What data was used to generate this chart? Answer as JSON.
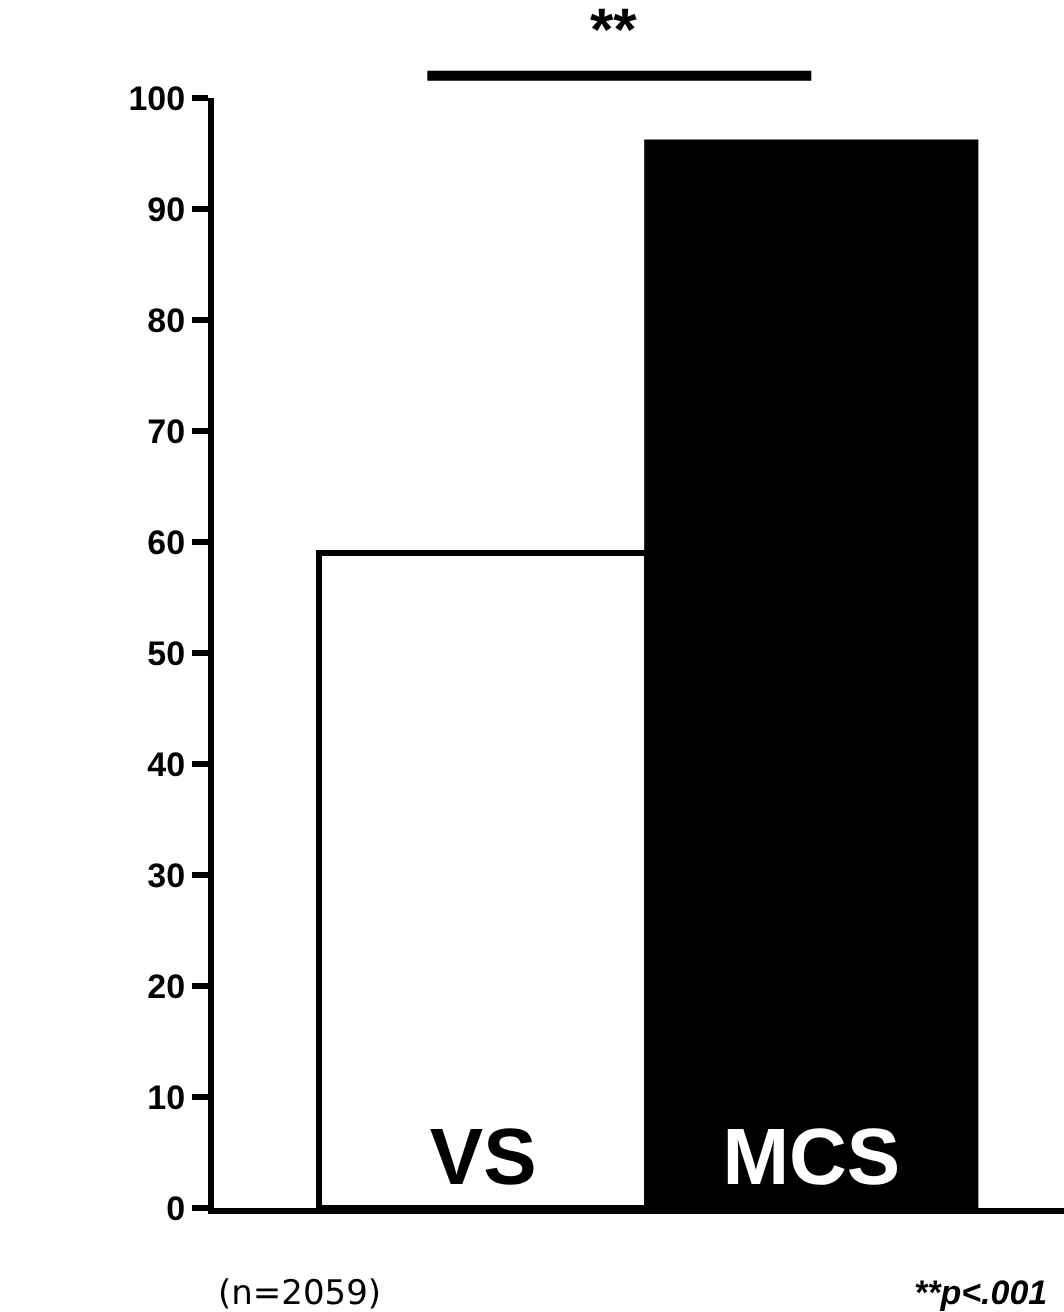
{
  "chart_data": {
    "type": "bar",
    "categories": [
      "VS",
      "MCS"
    ],
    "values": [
      59,
      96
    ],
    "colors": [
      "#ffffff",
      "#000000"
    ],
    "ylim": [
      0,
      100
    ],
    "yticks": [
      0,
      10,
      20,
      30,
      40,
      50,
      60,
      70,
      80,
      90,
      100
    ],
    "grid": false,
    "tick_labels": "y",
    "annotations": [
      "**",
      "(n=2059)",
      "**p<.001"
    ]
  }
}
